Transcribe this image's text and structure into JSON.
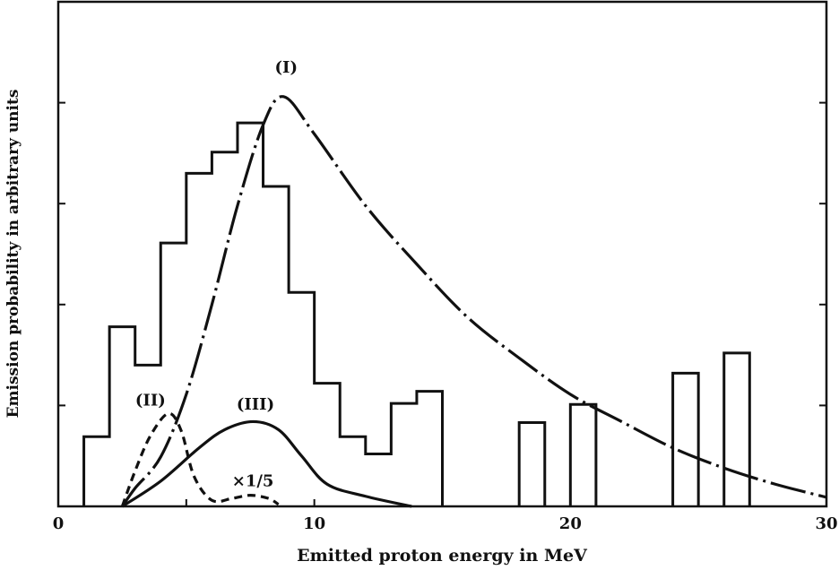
{
  "chart_data": {
    "type": "line",
    "title": "",
    "xlabel": "Emitted proton energy in MeV",
    "ylabel": "Emission probability in arbitrary units",
    "xlim": [
      0,
      30
    ],
    "ylim": [
      0,
      5
    ],
    "xticks": [
      0,
      10,
      20,
      30
    ],
    "x_minor_ticks": [
      5,
      15,
      25
    ],
    "y_ticks_unlabeled": [
      1,
      2,
      3,
      4
    ],
    "grid": false,
    "histogram": {
      "style": "step outline, solid",
      "bins": [
        {
          "x0": 1,
          "x1": 2,
          "value": 0.69
        },
        {
          "x0": 2,
          "x1": 3,
          "value": 1.78
        },
        {
          "x0": 3,
          "x1": 4,
          "value": 1.4
        },
        {
          "x0": 4,
          "x1": 5,
          "value": 2.61
        },
        {
          "x0": 5,
          "x1": 6,
          "value": 3.3
        },
        {
          "x0": 6,
          "x1": 7,
          "value": 3.51
        },
        {
          "x0": 7,
          "x1": 8,
          "value": 3.8
        },
        {
          "x0": 8,
          "x1": 9,
          "value": 3.17
        },
        {
          "x0": 9,
          "x1": 10,
          "value": 2.12
        },
        {
          "x0": 10,
          "x1": 11,
          "value": 1.22
        },
        {
          "x0": 11,
          "x1": 12,
          "value": 0.69
        },
        {
          "x0": 12,
          "x1": 13,
          "value": 0.52
        },
        {
          "x0": 13,
          "x1": 14,
          "value": 1.02
        },
        {
          "x0": 14,
          "x1": 15,
          "value": 1.14
        },
        {
          "x0": 18,
          "x1": 19,
          "value": 0.83
        },
        {
          "x0": 20,
          "x1": 21,
          "value": 1.01
        },
        {
          "x0": 24,
          "x1": 25,
          "value": 1.32
        },
        {
          "x0": 26,
          "x1": 27,
          "value": 1.52
        }
      ]
    },
    "series": [
      {
        "name": "(I)",
        "style": "dash-dot",
        "x": [
          2.5,
          3,
          4,
          5,
          6,
          7,
          8,
          8.8,
          10,
          12,
          14,
          16,
          18,
          20,
          22,
          24,
          26,
          28,
          30
        ],
        "y": [
          0,
          0.18,
          0.49,
          1.11,
          2.0,
          2.98,
          3.78,
          4.06,
          3.69,
          2.98,
          2.4,
          1.87,
          1.47,
          1.11,
          0.84,
          0.58,
          0.38,
          0.22,
          0.09
        ]
      },
      {
        "name": "(II)",
        "style": "dashed",
        "x": [
          2.5,
          3,
          3.6,
          4.3,
          4.8,
          5.3,
          6,
          6.8,
          7.5,
          8.2,
          8.6
        ],
        "y": [
          0,
          0.35,
          0.7,
          0.92,
          0.75,
          0.3,
          0.06,
          0.08,
          0.11,
          0.08,
          0.02
        ]
      },
      {
        "name": "(III)",
        "style": "solid",
        "x": [
          2.5,
          4,
          5.5,
          6.5,
          7.6,
          8.6,
          9.5,
          10.5,
          12,
          13.8
        ],
        "y": [
          0,
          0.25,
          0.58,
          0.76,
          0.84,
          0.76,
          0.5,
          0.22,
          0.1,
          0
        ]
      }
    ],
    "annotations": [
      {
        "text": "(I)",
        "x": 8.9,
        "y": 4.3
      },
      {
        "text": "(II)",
        "x": 3.6,
        "y": 1.0
      },
      {
        "text": "(III)",
        "x": 7.7,
        "y": 0.96
      },
      {
        "text": "×1/5",
        "x": 7.6,
        "y": 0.2
      }
    ]
  }
}
